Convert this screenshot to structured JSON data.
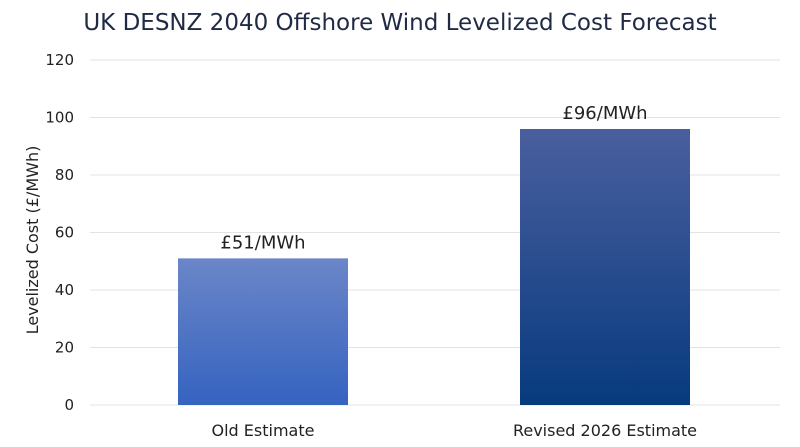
{
  "chart_data": {
    "type": "bar",
    "title": "UK DESNZ 2040 Offshore Wind Levelized Cost Forecast",
    "xlabel": "",
    "ylabel": "Levelized Cost (£/MWh)",
    "categories": [
      "Old Estimate",
      "Revised 2026 Estimate"
    ],
    "values": [
      51,
      96
    ],
    "data_labels": [
      "£51/MWh",
      "£96/MWh"
    ],
    "ylim": [
      0,
      120
    ],
    "yticks": [
      0,
      20,
      40,
      60,
      80,
      100,
      120
    ],
    "grid": true,
    "legend": "none",
    "colors": {
      "bar_top": [
        "#6b86c8",
        "#4a5f9e"
      ],
      "bar_bottom": [
        "#3563c0",
        "#073a7e"
      ],
      "grid": "#e3e3e3"
    }
  }
}
